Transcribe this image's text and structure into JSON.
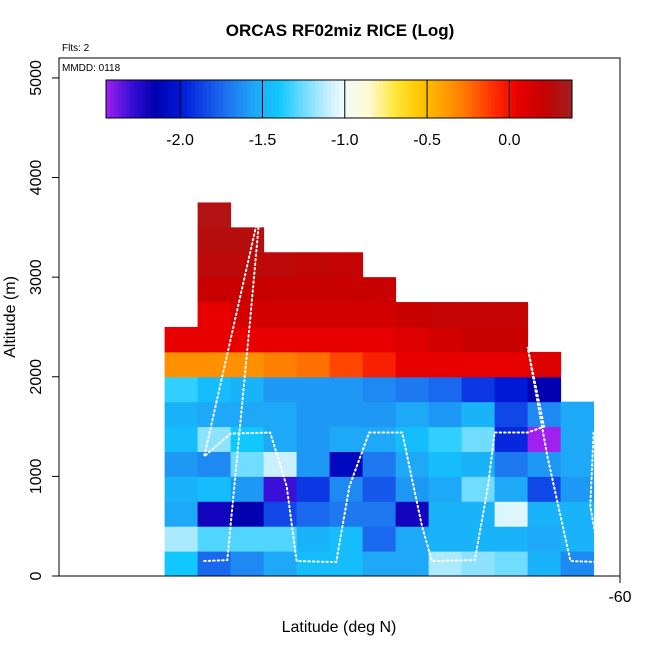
{
  "chart_data": {
    "type": "heatmap",
    "title": "ORCAS RF02miz RICE (Log)",
    "xlabel": "Latitude (deg N)",
    "ylabel": "Altitude (m)",
    "flights_label": "Flts: 2",
    "date_label": "MMDD: 0118",
    "xlim": [
      -77.0,
      -60.0
    ],
    "ylim": [
      0,
      5200
    ],
    "x_ticks": [
      -60
    ],
    "y_ticks": [
      0,
      1000,
      2000,
      3000,
      4000,
      5000
    ],
    "lat_bin_width": 1.0,
    "alt_bin_height": 250,
    "colorbar": {
      "min": -2.45,
      "max": 0.38,
      "ticks": [
        -2.0,
        -1.5,
        -1.0,
        -0.5,
        0.0
      ],
      "tick_labels": [
        "-2.0",
        "-1.5",
        "-1.0",
        "-0.5",
        "0.0"
      ],
      "stops": [
        [
          -2.45,
          "#a020f0"
        ],
        [
          -2.3,
          "#3a0fd8"
        ],
        [
          -2.15,
          "#0000b0"
        ],
        [
          -2.0,
          "#0018d8"
        ],
        [
          -1.85,
          "#1048e8"
        ],
        [
          -1.7,
          "#1e78f0"
        ],
        [
          -1.55,
          "#1ea8f8"
        ],
        [
          -1.4,
          "#10c8ff"
        ],
        [
          -1.25,
          "#70dcff"
        ],
        [
          -1.1,
          "#c8f0ff"
        ],
        [
          -1.0,
          "#f0fcf8"
        ],
        [
          -0.85,
          "#fffad0"
        ],
        [
          -0.7,
          "#ffe840"
        ],
        [
          -0.55,
          "#ffc800"
        ],
        [
          -0.4,
          "#ffa000"
        ],
        [
          -0.25,
          "#ff7000"
        ],
        [
          -0.1,
          "#ff3000"
        ],
        [
          0.05,
          "#e80000"
        ],
        [
          0.2,
          "#c80000"
        ],
        [
          0.38,
          "#a02020"
        ]
      ]
    },
    "columns": [
      {
        "lat": -73.8,
        "bottom_alt": 0,
        "values": [
          -1.4,
          -1.15,
          -1.55,
          -1.5,
          -1.6,
          -1.45,
          -1.5,
          -1.35,
          -0.35,
          0.05
        ]
      },
      {
        "lat": -72.8,
        "bottom_alt": 0,
        "values": [
          -1.75,
          -1.3,
          -2.2,
          -1.45,
          -1.65,
          -1.2,
          -1.55,
          -1.45,
          -0.35,
          0.05,
          0.05,
          0.2,
          0.25,
          0.28,
          0.3
        ]
      },
      {
        "lat": -71.8,
        "bottom_alt": 0,
        "values": [
          -1.65,
          -1.3,
          -2.15,
          -1.6,
          -1.25,
          -1.4,
          -1.55,
          -1.5,
          -0.35,
          0.05,
          0.15,
          0.2,
          0.25,
          0.28
        ]
      },
      {
        "lat": -70.8,
        "bottom_alt": 0,
        "values": [
          -1.55,
          -1.3,
          -1.85,
          -2.3,
          -1.1,
          -1.55,
          -1.55,
          -1.6,
          -0.3,
          0.05,
          0.15,
          0.2,
          0.25
        ]
      },
      {
        "lat": -69.8,
        "bottom_alt": 0,
        "values": [
          -1.45,
          -1.5,
          -1.75,
          -1.9,
          -1.6,
          -1.6,
          -1.6,
          -1.6,
          -0.25,
          0.05,
          0.15,
          0.2,
          0.23
        ]
      },
      {
        "lat": -68.8,
        "bottom_alt": 0,
        "values": [
          -1.45,
          -1.45,
          -1.7,
          -1.65,
          -2.1,
          -1.55,
          -1.6,
          -1.6,
          -0.15,
          0.05,
          0.15,
          0.2,
          0.22
        ]
      },
      {
        "lat": -67.8,
        "bottom_alt": 0,
        "values": [
          -1.55,
          -1.75,
          -1.7,
          -1.8,
          -1.7,
          -1.55,
          -1.6,
          -1.65,
          -0.05,
          0.05,
          0.15,
          0.2
        ]
      },
      {
        "lat": -66.8,
        "bottom_alt": 0,
        "values": [
          -1.55,
          -1.55,
          -2.2,
          -1.6,
          -1.55,
          -1.45,
          -1.55,
          -1.7,
          0.05,
          0.1,
          0.2
        ]
      },
      {
        "lat": -65.8,
        "bottom_alt": 0,
        "values": [
          -1.15,
          -1.5,
          -1.5,
          -1.55,
          -1.45,
          -1.35,
          -1.6,
          -1.75,
          0.05,
          0.15,
          0.22
        ]
      },
      {
        "lat": -64.8,
        "bottom_alt": 0,
        "values": [
          -1.2,
          -1.5,
          -1.5,
          -1.25,
          -1.5,
          -1.25,
          -1.5,
          -1.9,
          0.05,
          0.2,
          0.22
        ]
      },
      {
        "lat": -63.8,
        "bottom_alt": 0,
        "values": [
          -1.25,
          -1.5,
          -1.05,
          -1.55,
          -1.7,
          -1.95,
          -1.85,
          -2.0,
          0.05,
          0.2,
          0.22
        ]
      },
      {
        "lat": -62.8,
        "bottom_alt": 0,
        "values": [
          -1.5,
          -1.55,
          -1.5,
          -1.85,
          -1.6,
          -2.45,
          -1.65,
          -2.15,
          0.1
        ]
      },
      {
        "lat": -61.8,
        "bottom_alt": 0,
        "values": [
          -1.65,
          -1.5,
          -1.5,
          -1.6,
          -1.55,
          -1.55,
          -1.55
        ]
      }
    ],
    "flight_track": [
      {
        "lat": -72.6,
        "alt": 150
      },
      {
        "lat": -71.9,
        "alt": 160
      },
      {
        "lat": -71.2,
        "alt": 2600
      },
      {
        "lat": -70.9,
        "alt": 3700
      },
      {
        "lat": -72.6,
        "alt": 1200
      },
      {
        "lat": -71.8,
        "alt": 1430
      },
      {
        "lat": -70.6,
        "alt": 1440
      },
      {
        "lat": -70.1,
        "alt": 900
      },
      {
        "lat": -69.8,
        "alt": 150
      },
      {
        "lat": -68.6,
        "alt": 140
      },
      {
        "lat": -68.2,
        "alt": 900
      },
      {
        "lat": -67.6,
        "alt": 1440
      },
      {
        "lat": -66.6,
        "alt": 1440
      },
      {
        "lat": -66.0,
        "alt": 500
      },
      {
        "lat": -65.7,
        "alt": 150
      },
      {
        "lat": -64.4,
        "alt": 160
      },
      {
        "lat": -64.0,
        "alt": 900
      },
      {
        "lat": -63.8,
        "alt": 1440
      },
      {
        "lat": -62.8,
        "alt": 1440
      },
      {
        "lat": -62.3,
        "alt": 1500
      },
      {
        "lat": -62.8,
        "alt": 2300
      },
      {
        "lat": -62.2,
        "alt": 1200
      },
      {
        "lat": -61.5,
        "alt": 150
      },
      {
        "lat": -60.6,
        "alt": 140
      },
      {
        "lat": -60.9,
        "alt": 700
      },
      {
        "lat": -60.8,
        "alt": 1440
      },
      {
        "lat": -60.0,
        "alt": 1440
      }
    ]
  }
}
